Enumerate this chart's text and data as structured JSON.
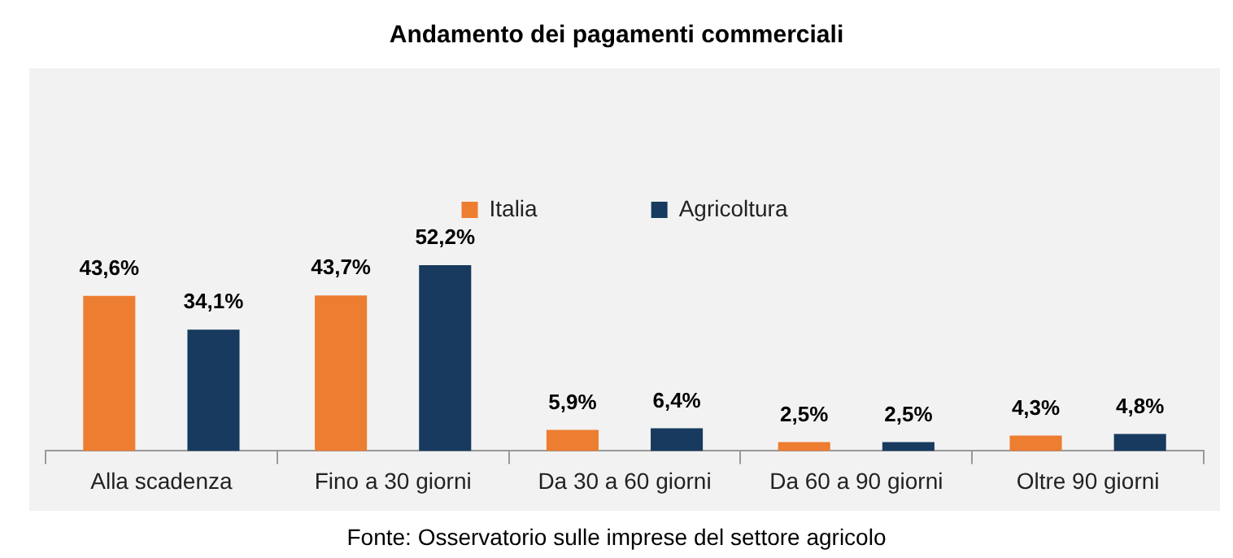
{
  "chart_data": {
    "type": "bar",
    "title": "Andamento dei pagamenti commerciali",
    "categories": [
      "Alla scadenza",
      "Fino a 30 giorni",
      "Da 30 a 60 giorni",
      "Da 60 a 90 giorni",
      "Oltre 90 giorni"
    ],
    "series": [
      {
        "name": "Italia",
        "color": "#ed7d31",
        "values": [
          43.6,
          43.7,
          5.9,
          2.5,
          4.3
        ],
        "value_labels": [
          "43,6%",
          "43,7%",
          "5,9%",
          "2,5%",
          "4,3%"
        ]
      },
      {
        "name": "Agricoltura",
        "color": "#173a5e",
        "values": [
          34.1,
          52.2,
          6.4,
          2.5,
          4.8
        ],
        "value_labels": [
          "34,1%",
          "52,2%",
          "6,4%",
          "2,5%",
          "4,8%"
        ]
      }
    ],
    "grid": false,
    "legend": "top",
    "annotations": [
      "Fonte: Osservatorio sulle imprese del settore agricolo"
    ]
  }
}
